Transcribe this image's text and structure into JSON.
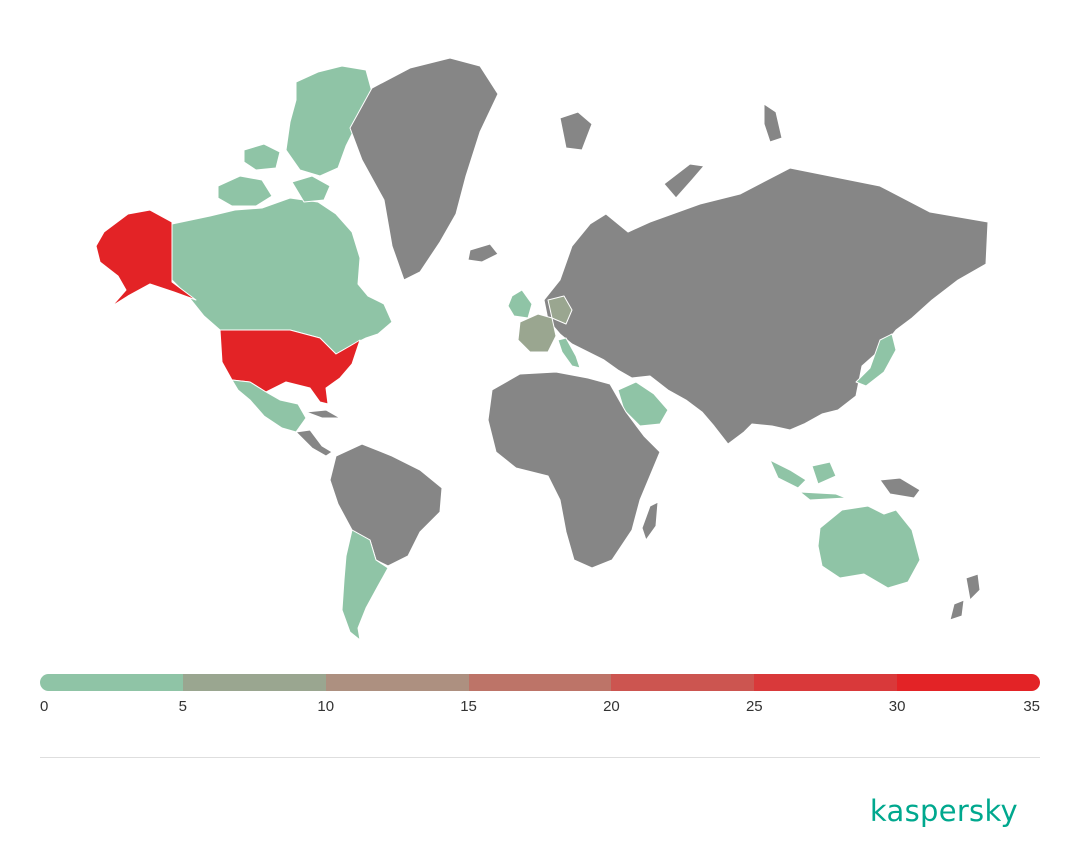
{
  "legend": {
    "colors": [
      "#8fc4a6",
      "#9aa690",
      "#ad9080",
      "#bd7468",
      "#cc5550",
      "#d9393a",
      "#e32326"
    ],
    "ticks": [
      "0",
      "5",
      "10",
      "15",
      "20",
      "25",
      "30",
      "35"
    ],
    "min": 0,
    "max": 35
  },
  "map": {
    "default_color": "#868686",
    "regions": [
      {
        "name": "United States",
        "level": "35+",
        "color": "#e32326"
      },
      {
        "name": "Canada",
        "level": "0-5",
        "color": "#8fc4a6"
      },
      {
        "name": "Mexico",
        "level": "0-5",
        "color": "#8fc4a6"
      },
      {
        "name": "Argentina",
        "level": "0-5",
        "color": "#8fc4a6"
      },
      {
        "name": "United Kingdom",
        "level": "0-5",
        "color": "#8fc4a6"
      },
      {
        "name": "France",
        "level": "5-10",
        "color": "#9aa690"
      },
      {
        "name": "Germany",
        "level": "5-10",
        "color": "#9aa690"
      },
      {
        "name": "Italy",
        "level": "0-5",
        "color": "#8fc4a6"
      },
      {
        "name": "Saudi Arabia",
        "level": "0-5",
        "color": "#8fc4a6"
      },
      {
        "name": "Japan",
        "level": "0-5",
        "color": "#8fc4a6"
      },
      {
        "name": "Indonesia",
        "level": "0-5",
        "color": "#8fc4a6"
      },
      {
        "name": "Australia",
        "level": "0-5",
        "color": "#8fc4a6"
      }
    ]
  },
  "brand": {
    "logo_text": "kaspersky",
    "color": "#00a88e"
  }
}
